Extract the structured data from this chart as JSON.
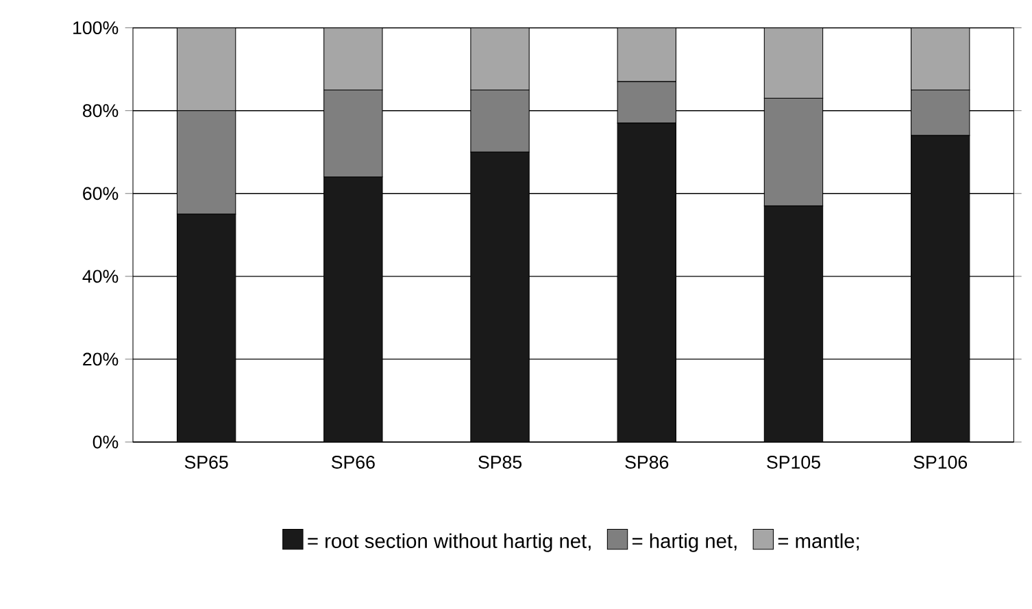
{
  "chart_data": {
    "type": "bar",
    "stacked": true,
    "categories": [
      "SP65",
      "SP66",
      "SP85",
      "SP86",
      "SP105",
      "SP106"
    ],
    "series": [
      {
        "name": "= root section without hartig net,",
        "color": "#1a1a1a",
        "values": [
          55,
          64,
          70,
          77,
          57,
          74
        ]
      },
      {
        "name": "= hartig net,",
        "color": "#7f7f7f",
        "values": [
          25,
          21,
          15,
          10,
          26,
          11
        ]
      },
      {
        "name": "= mantle;",
        "color": "#a6a6a6",
        "values": [
          20,
          15,
          15,
          13,
          17,
          15
        ]
      }
    ],
    "ylim": [
      0,
      100
    ],
    "yticks": [
      {
        "value": 0,
        "label": "0%"
      },
      {
        "value": 20,
        "label": "20%"
      },
      {
        "value": 40,
        "label": "40%"
      },
      {
        "value": 60,
        "label": "60%"
      },
      {
        "value": 80,
        "label": "80%"
      },
      {
        "value": 100,
        "label": "100%"
      }
    ],
    "grid": "y",
    "legend": "bottom"
  }
}
